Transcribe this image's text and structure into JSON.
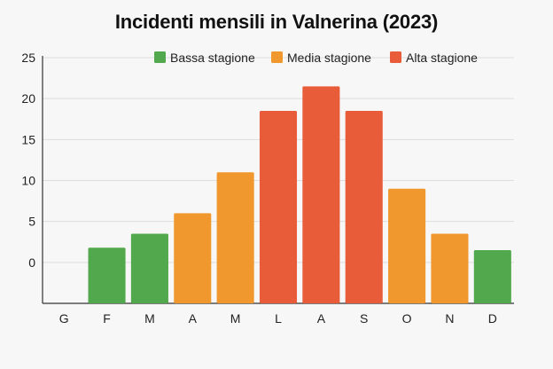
{
  "chart_data": {
    "type": "bar",
    "title": "Incidenti mensili in Valnerina (2023)",
    "xlabel": "",
    "ylabel": "",
    "categories": [
      "G",
      "F",
      "M",
      "A",
      "M",
      "L",
      "A",
      "S",
      "O",
      "N",
      "D"
    ],
    "values": [
      0,
      1.8,
      3.5,
      6,
      11,
      18.5,
      21.5,
      18.5,
      9,
      3.5,
      1.5
    ],
    "season": [
      "bassa",
      "bassa",
      "bassa",
      "media",
      "media",
      "alta",
      "alta",
      "alta",
      "media",
      "media",
      "bassa"
    ],
    "ylim": [
      -5,
      25
    ],
    "yticks": [
      0,
      5,
      10,
      15,
      20,
      25
    ],
    "grid": true,
    "legend_position": "top-right",
    "legend": [
      {
        "key": "bassa",
        "label": "Bassa stagione",
        "color": "#52a84c"
      },
      {
        "key": "media",
        "label": "Media stagione",
        "color": "#f0982e"
      },
      {
        "key": "alta",
        "label": "Alta stagione",
        "color": "#e85c39"
      }
    ]
  }
}
